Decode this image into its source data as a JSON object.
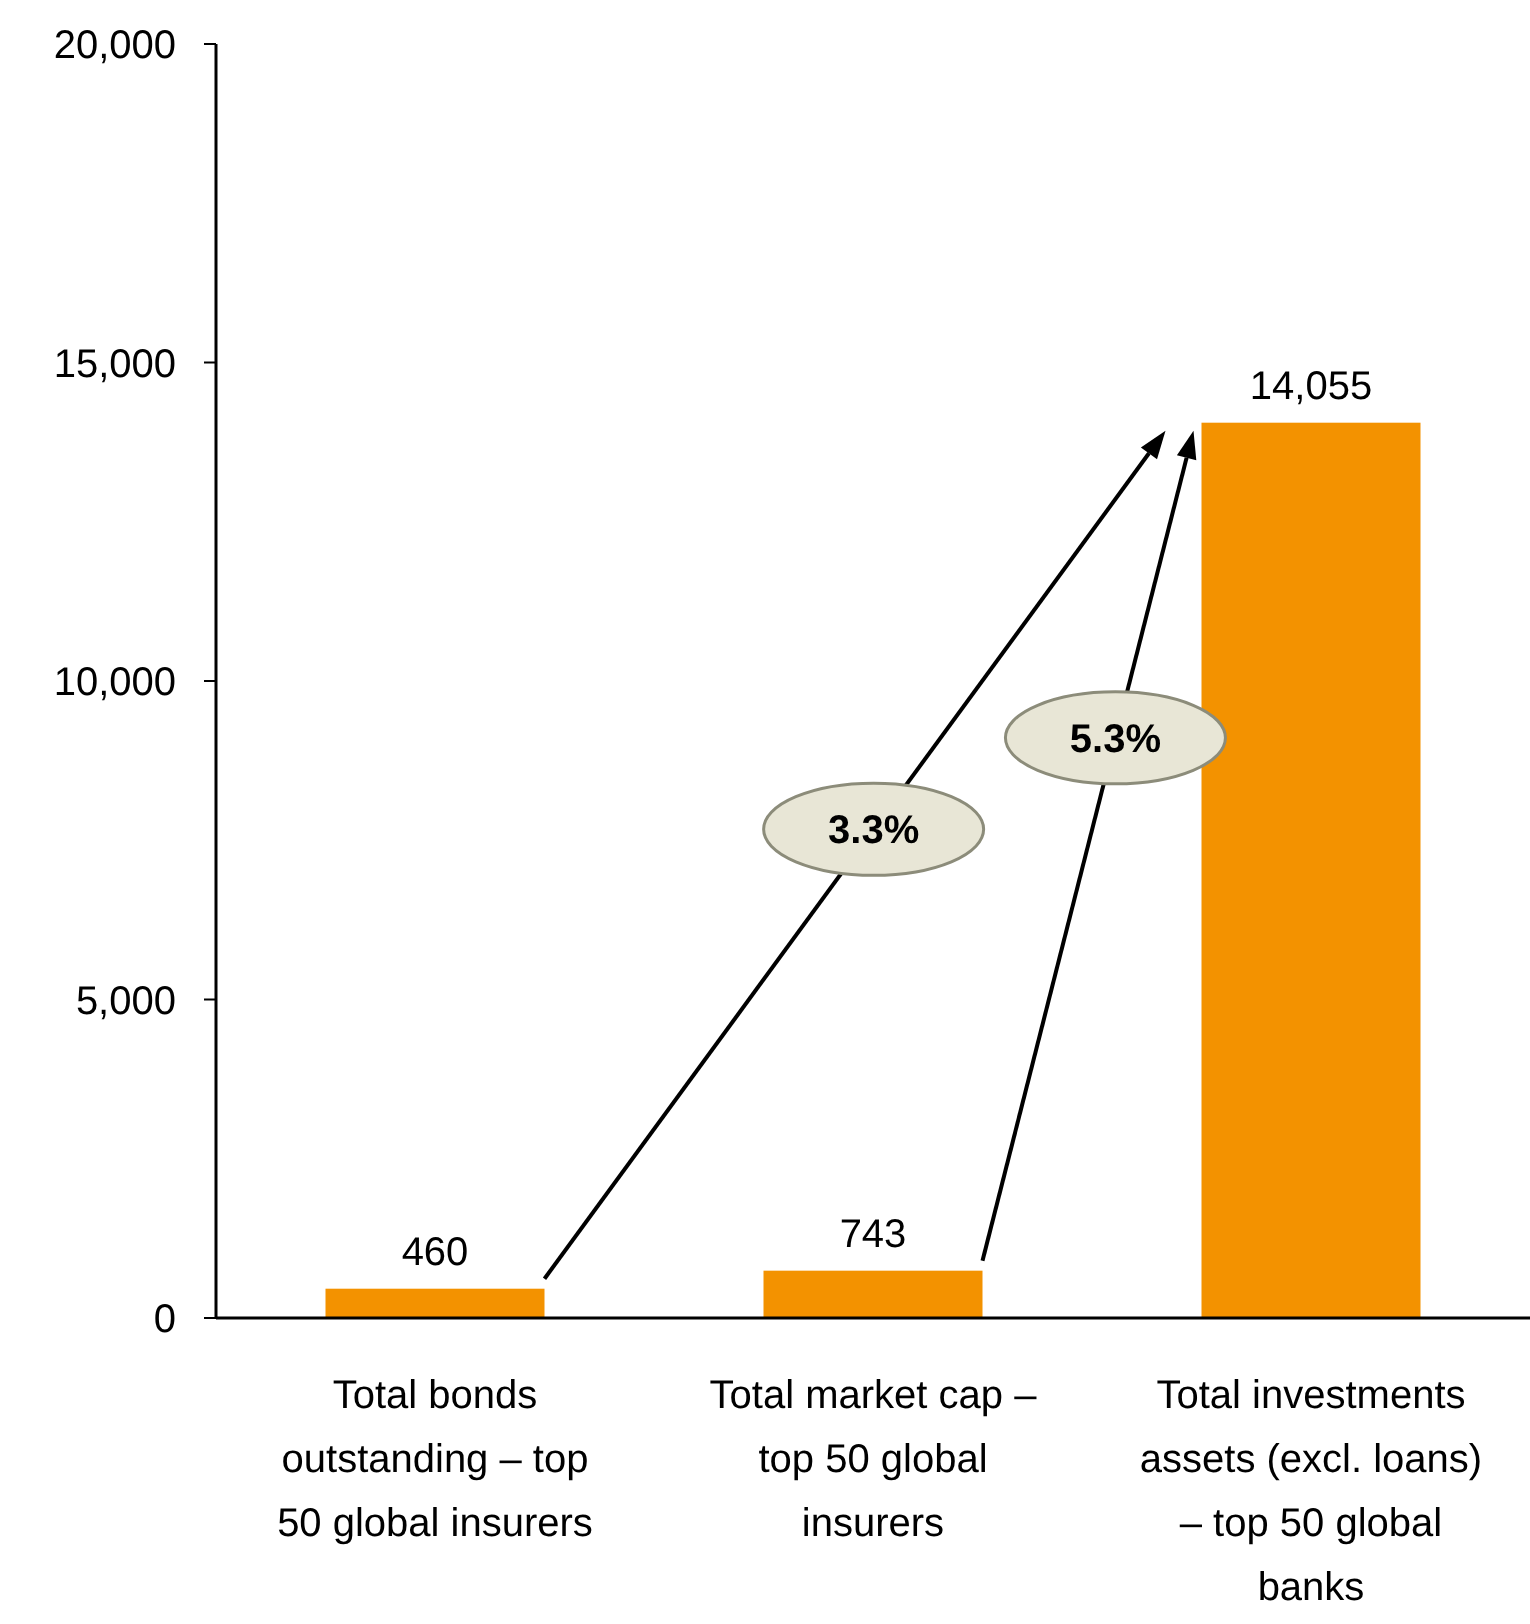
{
  "chart_data": {
    "type": "bar",
    "categories": [
      "Total bonds outstanding – top 50 global insurers",
      "Total market cap – top 50 global insurers",
      "Total investments assets (excl. loans) – top 50 global banks"
    ],
    "values": [
      460,
      743,
      14055
    ],
    "color": "#f39200",
    "ylim": [
      0,
      20000
    ],
    "yticks": [
      0,
      {
        "value": 5000,
        "label": "5,000"
      },
      {
        "value": 10000,
        "label": "10,000"
      },
      {
        "value": 15000,
        "label": "15,000"
      },
      {
        "value": 20000,
        "label": "20,000"
      }
    ],
    "value_labels": [
      "460",
      "743",
      "14,055"
    ],
    "grid": false,
    "annotations": [
      "3.3%",
      "5.3%"
    ]
  }
}
